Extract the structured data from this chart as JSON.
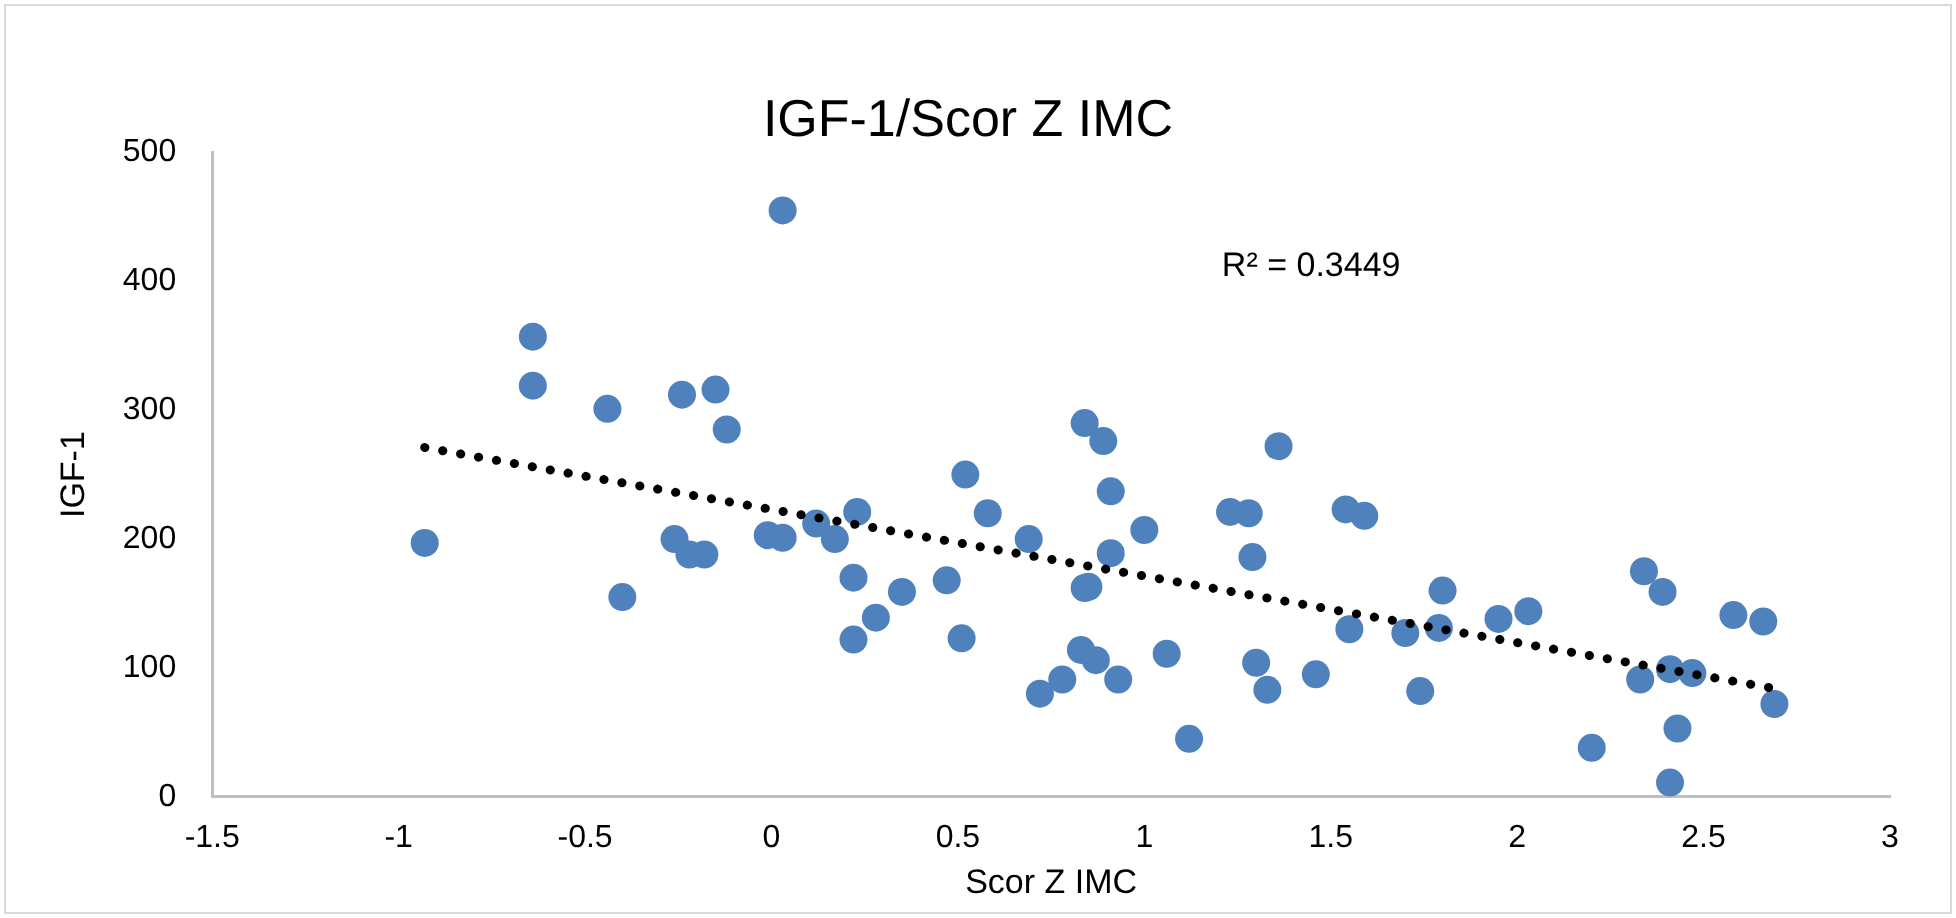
{
  "chart_data": {
    "type": "scatter",
    "title": "IGF-1/Scor Z IMC",
    "xlabel": "Scor Z IMC",
    "ylabel": "IGF-1",
    "annotations": [
      "R² = 0.3449"
    ],
    "xlim": [
      -1.5,
      3
    ],
    "xticks": [
      -1.5,
      -1,
      -0.5,
      0,
      0.5,
      1,
      1.5,
      2,
      2.5,
      3
    ],
    "ylim": [
      0,
      500
    ],
    "yticks": [
      0,
      100,
      200,
      300,
      400,
      500
    ],
    "grid": false,
    "legend": false,
    "marker": "circle",
    "series": [
      {
        "color": "#4f81bd",
        "x": [
          -0.93,
          -0.64,
          -0.64,
          -0.44,
          -0.4,
          -0.24,
          -0.15,
          -0.12,
          -0.26,
          -0.22,
          -0.18,
          -0.01,
          0.03,
          0.03,
          0.12,
          0.17,
          0.23,
          0.22,
          0.22,
          0.28,
          0.35,
          0.47,
          0.51,
          0.52,
          0.58,
          0.69,
          0.72,
          0.78,
          0.83,
          0.84,
          0.84,
          0.89,
          0.91,
          1.0,
          0.91,
          0.85,
          0.87,
          0.93,
          1.06,
          1.12,
          1.23,
          1.28,
          1.29,
          1.36,
          1.3,
          1.33,
          1.46,
          1.54,
          1.59,
          1.55,
          1.7,
          1.74,
          1.8,
          1.79,
          1.95,
          2.03,
          2.2,
          2.34,
          2.39,
          2.33,
          2.41,
          2.47,
          2.43,
          2.41,
          2.58,
          2.66,
          2.69
        ],
        "values": [
          197,
          357,
          319,
          301,
          155,
          312,
          316,
          285,
          200,
          188,
          188,
          203,
          201,
          455,
          212,
          200,
          221,
          170,
          122,
          139,
          159,
          168,
          123,
          250,
          220,
          200,
          80,
          91,
          114,
          162,
          290,
          276,
          237,
          207,
          189,
          163,
          106,
          91,
          111,
          45,
          221,
          220,
          186,
          272,
          104,
          83,
          95,
          223,
          218,
          130,
          127,
          82,
          160,
          131,
          138,
          144,
          38,
          175,
          159,
          91,
          99,
          96,
          53,
          11,
          141,
          136,
          72
        ]
      },
      {
        "type": "line",
        "color": "#000000",
        "line_style": "dotted",
        "marker": "none",
        "x": [
          -0.93,
          2.69
        ],
        "values": [
          271,
          84
        ]
      }
    ]
  }
}
